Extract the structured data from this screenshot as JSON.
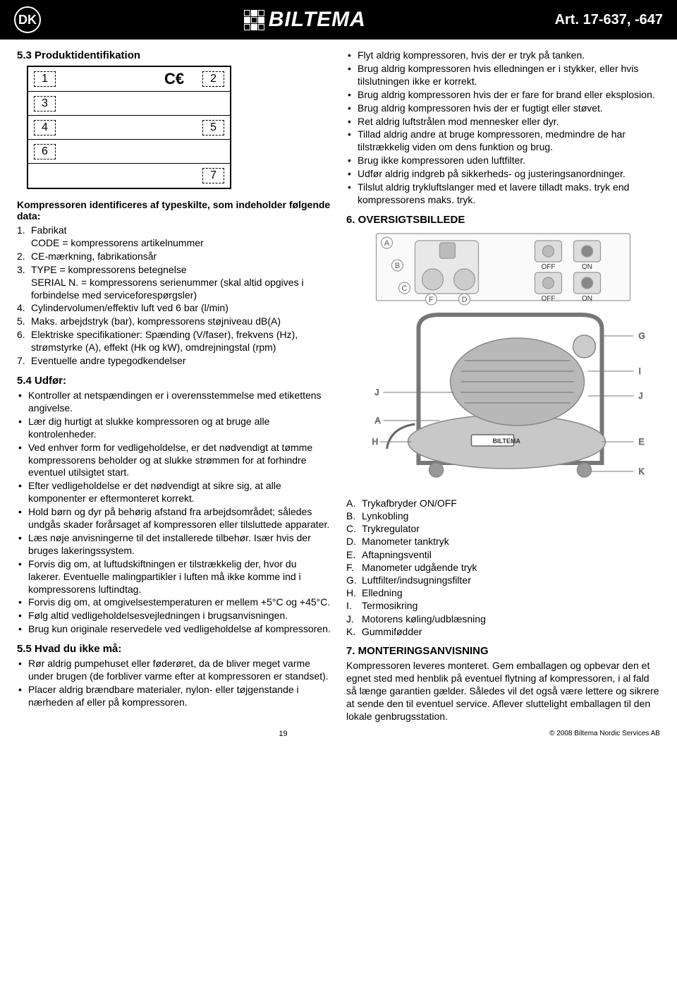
{
  "header": {
    "country_badge": "DK",
    "logo_text": "BILTEMA",
    "art_no": "Art. 17-637, -647"
  },
  "left": {
    "h53": "5.3 Produktidentifikation",
    "typeplate": {
      "boxes": [
        "1",
        "2",
        "3",
        "4",
        "5",
        "6",
        "7"
      ],
      "ce": "CE"
    },
    "intro": "Kompressoren identificeres af typeskilte, som indeholder følgende data:",
    "items": [
      {
        "n": "1.",
        "t": "Fabrikat\nCODE = kompressorens artikelnummer"
      },
      {
        "n": "2.",
        "t": "CE-mærkning, fabrikationsår"
      },
      {
        "n": "3.",
        "t": "TYPE = kompressorens betegnelse\nSERIAL N. = kompressorens serienummer (skal altid opgives i forbindelse med serviceforespørgsler)"
      },
      {
        "n": "4.",
        "t": "Cylindervolumen/effektiv luft ved 6 bar (l/min)"
      },
      {
        "n": "5.",
        "t": "Maks. arbejdstryk (bar), kompressorens støjniveau dB(A)"
      },
      {
        "n": "6.",
        "t": "Elektriske specifikationer: Spænding (V/faser), frekvens (Hz), strømstyrke (A), effekt (Hk og kW), omdrejningstal (rpm)"
      },
      {
        "n": "7.",
        "t": "Eventuelle andre typegodkendelser"
      }
    ],
    "h54": "5.4 Udfør:",
    "do_items": [
      "Kontroller at netspændingen er i overensstemmelse med etikettens angivelse.",
      "Lær dig hurtigt at slukke kompressoren og at bruge alle kontrolenheder.",
      "Ved enhver form for vedligeholdelse, er det nødvendigt at tømme kompressorens beholder og at slukke strømmen for at forhindre eventuel utilsigtet start.",
      "Efter vedligeholdelse er det nødvendigt at sikre sig, at alle komponenter er eftermonteret korrekt.",
      "Hold børn og dyr på behørig afstand fra arbejdsområdet; således undgås skader forårsaget af kompressoren eller tilsluttede apparater.",
      "Læs nøje anvisningerne til det installerede tilbehør. Især hvis der bruges lakeringssystem.",
      "Forvis dig om, at luftudskiftningen er tilstrækkelig der, hvor du lakerer. Eventuelle malingpartikler i luften må ikke komme ind i kompressorens luftindtag.",
      "Forvis dig om, at omgivelsestemperaturen er mellem +5°C og +45°C.",
      "Følg altid vedligeholdelsesvejledningen i brugsanvisningen.",
      "Brug kun originale reservedele ved vedligeholdelse af kompressoren."
    ],
    "h55": "5.5 Hvad du ikke må:",
    "dont_items": [
      "Rør aldrig pumpehuset eller føderøret, da de bliver meget varme under brugen (de forbliver varme efter at kompressoren er standset).",
      "Placer aldrig brændbare materialer, nylon- eller tøjgenstande i nærheden af eller på kompressoren."
    ]
  },
  "right": {
    "dont_cont": [
      "Flyt aldrig kompressoren, hvis der er tryk på tanken.",
      "Brug aldrig kompressoren hvis elledningen er i stykker, eller hvis tilslutningen ikke er korrekt.",
      "Brug aldrig kompressoren hvis der er fare for brand eller eksplosion.",
      "Brug aldrig kompressoren hvis der er fugtigt eller støvet.",
      "Ret aldrig luftstrålen mod mennesker eller dyr.",
      "Tillad aldrig andre at bruge kompressoren, medmindre de har tilstrækkelig viden om dens funktion og brug.",
      "Brug ikke kompressoren uden luftfilter.",
      "Udfør aldrig indgreb på sikkerheds- og justeringsanordninger.",
      "Tilslut aldrig trykluftslanger med et lavere tilladt maks. tryk end kompressorens maks. tryk."
    ],
    "h6": "6. OVERSIGTSBILLEDE",
    "switch_labels": {
      "off": "OFF",
      "on": "ON"
    },
    "diagram_letters": [
      "A",
      "B",
      "C",
      "D",
      "E",
      "F",
      "G",
      "H",
      "I",
      "J",
      "K"
    ],
    "legend": [
      {
        "l": "A.",
        "t": "Trykafbryder ON/OFF"
      },
      {
        "l": "B.",
        "t": "Lynkobling"
      },
      {
        "l": "C.",
        "t": "Trykregulator"
      },
      {
        "l": "D.",
        "t": "Manometer tanktryk"
      },
      {
        "l": "E.",
        "t": "Aftapningsventil"
      },
      {
        "l": "F.",
        "t": "Manometer udgående tryk"
      },
      {
        "l": "G.",
        "t": "Luftfilter/indsugningsfilter"
      },
      {
        "l": "H.",
        "t": "Elledning"
      },
      {
        "l": "I.",
        "t": "Termosikring"
      },
      {
        "l": "J.",
        "t": "Motorens køling/udblæsning"
      },
      {
        "l": "K.",
        "t": "Gummifødder"
      }
    ],
    "h7": "7. MONTERINGSANVISNING",
    "p7": "Kompressoren leveres monteret. Gem emballagen og opbevar den et egnet sted med henblik på eventuel flytning af kompressoren, i al fald så længe garantien gælder. Således vil det også være lettere og sikrere at sende den til eventuel service. Aflever sluttelight emballagen til den lokale genbrugsstation."
  },
  "footer": {
    "page": "19",
    "copyright": "© 2008 Biltema Nordic Services AB"
  }
}
